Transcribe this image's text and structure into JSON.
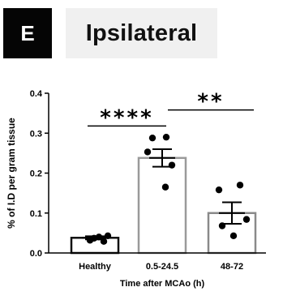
{
  "panel": {
    "letter": "E",
    "title": "Ipsilateral"
  },
  "chart_data": {
    "type": "bar",
    "title": "",
    "xlabel": "Time after MCAo (h)",
    "ylabel": "% of I.D per gram tissue",
    "categories": [
      "Healthy",
      "0.5-24.5",
      "48-72"
    ],
    "values": [
      0.038,
      0.238,
      0.1
    ],
    "errors": [
      0.004,
      0.022,
      0.027
    ],
    "points": [
      [
        0.032,
        0.037,
        0.04,
        0.029,
        0.043
      ],
      [
        0.29,
        0.288,
        0.253,
        0.22,
        0.165
      ],
      [
        0.17,
        0.158,
        0.084,
        0.068,
        0.043
      ]
    ],
    "ylim": [
      0,
      0.4
    ],
    "yticks": [
      0.0,
      0.1,
      0.2,
      0.3,
      0.4
    ],
    "ytick_labels": [
      "0.0",
      "0.1",
      "0.2",
      "0.3",
      "0.4"
    ],
    "bar_edge_colors": [
      "#111111",
      "#9a9a9a",
      "#8a8a8a"
    ],
    "point_color": "#000000",
    "grid": false,
    "significance": [
      {
        "from": 0,
        "to": 1,
        "label": "****",
        "y": 0.318
      },
      {
        "from": 1,
        "to": 2,
        "label": "**",
        "y": 0.358
      }
    ]
  }
}
